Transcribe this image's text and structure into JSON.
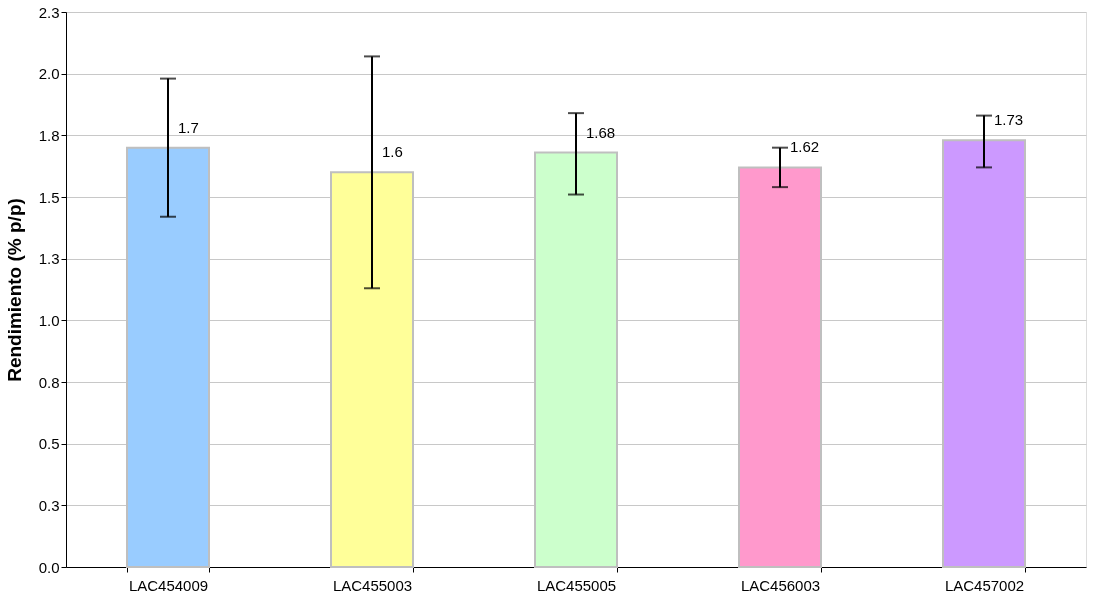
{
  "chart_data": {
    "type": "bar",
    "ylabel": "Rendimiento (% p/p)",
    "categories": [
      "LAC454009",
      "LAC455003",
      "LAC455005",
      "LAC456003",
      "LAC457002"
    ],
    "values": [
      1.7,
      1.6,
      1.68,
      1.62,
      1.73
    ],
    "colors": [
      "#99ccff",
      "#ffff99",
      "#ccffcc",
      "#ff99cc",
      "#cc99ff"
    ],
    "errors": [
      [
        1.42,
        1.98
      ],
      [
        1.13,
        2.07
      ],
      [
        1.51,
        1.84
      ],
      [
        1.54,
        1.7
      ],
      [
        1.62,
        1.83
      ]
    ],
    "data_labels": true,
    "ylim": [
      0,
      2.25
    ],
    "yticks": [
      {
        "value": 0,
        "label": "0.0"
      },
      {
        "value": 0.25,
        "label": "0.3"
      },
      {
        "value": 0.5,
        "label": "0.5"
      },
      {
        "value": 0.75,
        "label": "0.8"
      },
      {
        "value": 1,
        "label": "1.0"
      },
      {
        "value": 1.25,
        "label": "1.3"
      },
      {
        "value": 1.5,
        "label": "1.5"
      },
      {
        "value": 1.75,
        "label": "1.8"
      },
      {
        "value": 2,
        "label": "2.0"
      },
      {
        "value": 2.25,
        "label": "2.3"
      }
    ],
    "grid": "y"
  }
}
